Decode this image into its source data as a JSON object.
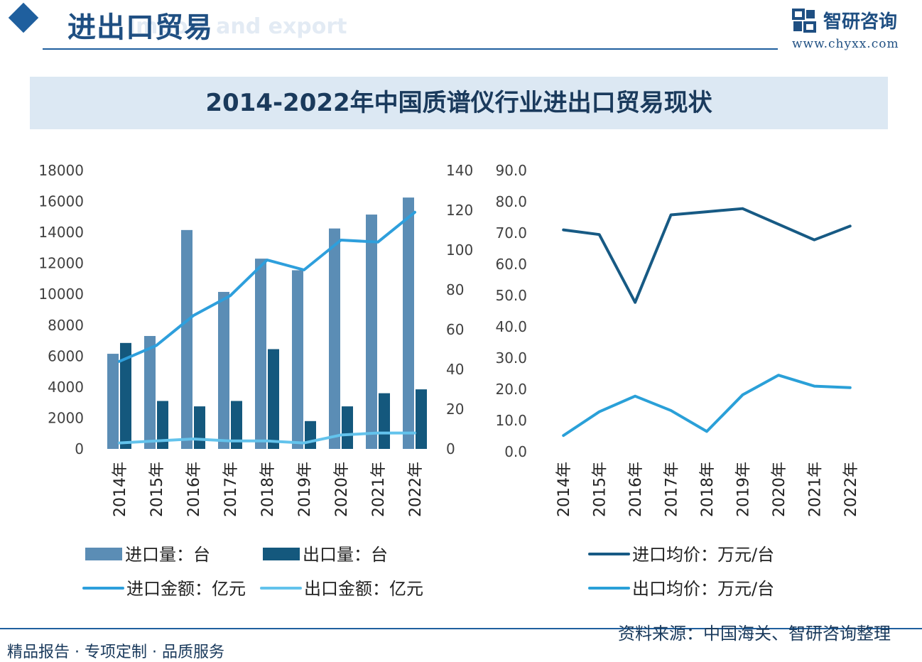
{
  "header": {
    "title": "进出口贸易",
    "subtitle": "Import and export"
  },
  "logo": {
    "name": "智研咨询",
    "url": "www.chyxx.com"
  },
  "colors": {
    "import_qty": "#5b8db5",
    "export_qty": "#14587d",
    "import_amt": "#2e9fdc",
    "export_amt": "#63c3ec",
    "import_price": "#175a84",
    "export_price": "#2aa0d8",
    "axis_text": "#404040"
  },
  "chart_data": [
    {
      "type": "bar",
      "title": "2014-2022年中国质谱仪行业进出口贸易现状",
      "categories": [
        "2014年",
        "2015年",
        "2016年",
        "2017年",
        "2018年",
        "2019年",
        "2020年",
        "2021年",
        "2022年"
      ],
      "y_left": {
        "ylim": [
          0,
          18000
        ],
        "ticks": [
          "0",
          "2000",
          "4000",
          "6000",
          "8000",
          "10000",
          "12000",
          "14000",
          "16000",
          "18000"
        ]
      },
      "y_right": {
        "ylim": [
          0,
          140
        ],
        "ticks": [
          "0",
          "20",
          "40",
          "60",
          "80",
          "100",
          "120",
          "140"
        ]
      },
      "series": [
        {
          "name": "进口量：台",
          "kind": "bar",
          "axis": "left",
          "values": [
            6150,
            7300,
            14150,
            10150,
            12300,
            11550,
            14250,
            15150,
            16250
          ]
        },
        {
          "name": "出口量：台",
          "kind": "bar",
          "axis": "left",
          "values": [
            6850,
            3100,
            2750,
            3100,
            6450,
            1800,
            2750,
            3600,
            3850
          ]
        },
        {
          "name": "进口金额：亿元",
          "kind": "line",
          "axis": "right",
          "values": [
            44,
            52,
            67,
            77,
            95,
            90,
            105,
            104,
            119
          ]
        },
        {
          "name": "出口金额：亿元",
          "kind": "line",
          "axis": "right",
          "values": [
            3,
            4,
            5,
            4,
            4,
            3,
            7,
            8,
            8
          ]
        }
      ]
    },
    {
      "type": "line",
      "categories": [
        "2014年",
        "2015年",
        "2016年",
        "2017年",
        "2018年",
        "2019年",
        "2020年",
        "2021年",
        "2022年"
      ],
      "ylim": [
        0,
        90
      ],
      "ticks": [
        "0.0",
        "10.0",
        "20.0",
        "30.0",
        "40.0",
        "50.0",
        "60.0",
        "70.0",
        "80.0",
        "90.0"
      ],
      "series": [
        {
          "name": "进口均价：万元/台",
          "values": [
            71.0,
            69.5,
            47.8,
            75.8,
            76.8,
            77.8,
            72.8,
            67.8,
            72.2
          ]
        },
        {
          "name": "出口均价：万元/台",
          "values": [
            5.2,
            12.8,
            17.8,
            13.2,
            6.5,
            18.2,
            24.5,
            21.0,
            20.5
          ]
        }
      ]
    }
  ],
  "footer": {
    "slogan": "精品报告 · 专项定制 · 品质服务",
    "source": "资料来源：中国海关、智研咨询整理"
  }
}
